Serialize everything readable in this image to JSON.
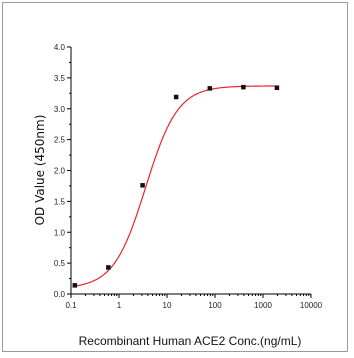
{
  "chart_data": {
    "type": "scatter",
    "xlabel": "Recombinant Human ACE2 Conc.(ng/mL)",
    "ylabel": "OD Value (450nm)",
    "xscale": "log",
    "xlim": [
      0.1,
      10000
    ],
    "ylim": [
      0,
      4.0
    ],
    "x_ticks": [
      {
        "value": 0.1,
        "label": "0.1"
      },
      {
        "value": 1,
        "label": "1"
      },
      {
        "value": 10,
        "label": "10"
      },
      {
        "value": 100,
        "label": "100"
      },
      {
        "value": 1000,
        "label": "1000"
      },
      {
        "value": 10000,
        "label": "10000"
      }
    ],
    "y_ticks": [
      {
        "value": 0.0,
        "label": "0.0"
      },
      {
        "value": 0.5,
        "label": "0.5"
      },
      {
        "value": 1.0,
        "label": "1.0"
      },
      {
        "value": 1.5,
        "label": "1.5"
      },
      {
        "value": 2.0,
        "label": "2.0"
      },
      {
        "value": 2.5,
        "label": "2.5"
      },
      {
        "value": 3.0,
        "label": "3.0"
      },
      {
        "value": 3.5,
        "label": "3.5"
      },
      {
        "value": 4.0,
        "label": "4.0"
      }
    ],
    "grid": false,
    "series": [
      {
        "points": [
          {
            "x": 0.12,
            "y": 0.14
          },
          {
            "x": 0.6,
            "y": 0.43
          },
          {
            "x": 3.1,
            "y": 1.76
          },
          {
            "x": 15.5,
            "y": 3.19
          },
          {
            "x": 78,
            "y": 3.33
          },
          {
            "x": 390,
            "y": 3.35
          },
          {
            "x": 1950,
            "y": 3.34
          }
        ],
        "marker_color": "#111111",
        "fit": {
          "model": "4PL",
          "bottom": 0.09,
          "top": 3.37,
          "ec50": 3.6,
          "hill": 1.3,
          "color": "#e8252b"
        }
      }
    ]
  }
}
